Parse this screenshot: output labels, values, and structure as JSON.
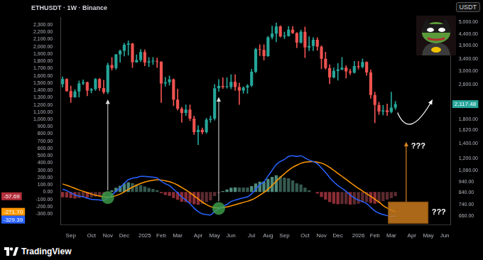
{
  "chart_data": {
    "type": "candlestick",
    "title": "ETHUSDT · 1W · Binance",
    "currency_button": "USDT",
    "brand": "TradingView",
    "grid": false,
    "log": "y",
    "categories": [
      null,
      null,
      "Sep",
      null,
      null,
      null,
      null,
      "Oct",
      null,
      null,
      null,
      "Nov",
      null,
      null,
      null,
      "Dec",
      null,
      null,
      null,
      null,
      "2025",
      null,
      null,
      null,
      "Feb",
      null,
      null,
      null,
      "Mar",
      null,
      null,
      null,
      null,
      "Apr",
      null,
      null,
      null,
      "May",
      null,
      null,
      null,
      "Jun",
      null,
      null,
      null,
      null,
      "Jul",
      null,
      null,
      null,
      "Aug",
      null,
      null,
      null,
      "Sep",
      null,
      null,
      null,
      null,
      "Oct",
      null,
      null,
      null,
      "Nov",
      null,
      null,
      null,
      "Dec",
      null,
      null,
      null,
      null,
      "2026",
      null,
      null,
      null,
      "Feb",
      null,
      null,
      null,
      "Mar",
      null,
      null,
      null,
      null,
      "Apr",
      null,
      null,
      null,
      "May",
      null,
      null,
      null,
      "Jun",
      null
    ],
    "ylim": [
      600,
      5230
    ],
    "yticks": [
      {
        "value": 5000,
        "label": "5,000.00"
      },
      {
        "value": 4400,
        "label": "4,400.00"
      },
      {
        "value": 3900,
        "label": "3,900.00"
      },
      {
        "value": 3400,
        "label": "3,400.00"
      },
      {
        "value": 3000,
        "label": "3,000.00"
      },
      {
        "value": 2600,
        "label": "2,600.00"
      },
      {
        "value": 1800,
        "label": "1,800.00"
      },
      {
        "value": 1620,
        "label": "1,620.00"
      },
      {
        "value": 1400,
        "label": "1,400.00"
      },
      {
        "value": 1200,
        "label": "1,200.00"
      },
      {
        "value": 1060,
        "label": "1,060.00"
      },
      {
        "value": 940,
        "label": "940.00"
      },
      {
        "value": 840,
        "label": "840.00"
      },
      {
        "value": 740,
        "label": "740.00"
      },
      {
        "value": 660,
        "label": "660.00"
      }
    ],
    "y2lim": [
      -450,
      2400
    ],
    "y2ticks": [
      {
        "value": 2300,
        "label": "2,300.00"
      },
      {
        "value": 2200,
        "label": "2,200.00"
      },
      {
        "value": 2100,
        "label": "2,100.00"
      },
      {
        "value": 2000,
        "label": "2,000.00"
      },
      {
        "value": 1900,
        "label": "1,900.00"
      },
      {
        "value": 1800,
        "label": "1,800.00"
      },
      {
        "value": 1700,
        "label": "1,700.00"
      },
      {
        "value": 1600,
        "label": "1,600.00"
      },
      {
        "value": 1500,
        "label": "1,500.00"
      },
      {
        "value": 1400,
        "label": "1,400.00"
      },
      {
        "value": 1300,
        "label": "1,300.00"
      },
      {
        "value": 1200,
        "label": "1,200.00"
      },
      {
        "value": 1100,
        "label": "1,100.00"
      },
      {
        "value": 1000,
        "label": "1,000.00"
      },
      {
        "value": 900,
        "label": "900.00"
      },
      {
        "value": 800,
        "label": "800.00"
      },
      {
        "value": 700,
        "label": "700.00"
      },
      {
        "value": 600,
        "label": "600.00"
      },
      {
        "value": 500,
        "label": "500.00"
      },
      {
        "value": 400,
        "label": "400.00"
      },
      {
        "value": 300,
        "label": "300.00"
      },
      {
        "value": 200,
        "label": "200.00"
      },
      {
        "value": 100,
        "label": "100.00"
      },
      {
        "value": 0,
        "label": "0.00"
      },
      {
        "value": -100,
        "label": "-100.00"
      },
      {
        "value": -200,
        "label": "-200.00"
      },
      {
        "value": -300,
        "label": "-300.00"
      }
    ],
    "series": [
      {
        "type": "candlestick",
        "open": [
          2610,
          2750,
          2425,
          2275,
          2415,
          2630,
          2660,
          2440,
          2475,
          2750,
          2505,
          2400,
          3190,
          3090,
          3560,
          3700,
          3940,
          3990,
          3280,
          3360,
          3650,
          3270,
          3310,
          3320,
          3300,
          2630,
          2660,
          2740,
          2220,
          2020,
          1930,
          2000,
          1820,
          1580,
          1620,
          1580,
          1800,
          1820,
          2500,
          2560,
          2530,
          2530,
          2670,
          2530,
          2440,
          2520,
          2570,
          2970,
          3760,
          3730,
          3500,
          4260,
          4430,
          4770,
          4300,
          4310,
          4610,
          4450,
          4030,
          4510,
          3830,
          3890,
          4150,
          3860,
          3400,
          3090,
          2800,
          3000,
          3040,
          3100,
          2980,
          2940,
          3150,
          3120,
          3290,
          2950,
          2330,
          2100,
          1960,
          1980,
          1950,
          2040,
          null,
          null,
          null,
          null,
          null,
          null,
          null,
          null,
          null,
          null,
          null,
          null,
          null
        ],
        "high": [
          2820,
          2765,
          2560,
          2465,
          2700,
          2730,
          2670,
          2500,
          2770,
          2770,
          2720,
          3250,
          3450,
          3560,
          3730,
          4000,
          4110,
          4000,
          3550,
          3750,
          3740,
          3450,
          3450,
          3430,
          3300,
          2800,
          2845,
          2760,
          2480,
          2050,
          2100,
          2100,
          1870,
          1690,
          1650,
          1830,
          1870,
          2600,
          2740,
          2790,
          2790,
          2880,
          2880,
          2640,
          2540,
          2600,
          3050,
          3800,
          3940,
          3940,
          4300,
          4790,
          4950,
          4810,
          4500,
          4770,
          4770,
          4470,
          4590,
          4750,
          4290,
          4250,
          4250,
          3900,
          3650,
          3200,
          3090,
          3240,
          3450,
          3170,
          3050,
          3310,
          3310,
          3400,
          3300,
          3030,
          2400,
          2160,
          2090,
          2120,
          2400,
          2180,
          null,
          null,
          null,
          null,
          null,
          null,
          null,
          null,
          null,
          null,
          null,
          null,
          null
        ],
        "low": [
          2530,
          2420,
          2150,
          2270,
          2280,
          2590,
          2310,
          2380,
          2440,
          2440,
          2360,
          2360,
          3020,
          3040,
          3280,
          3500,
          3530,
          3100,
          3280,
          3300,
          3160,
          3130,
          3200,
          3100,
          2150,
          2550,
          2580,
          2080,
          1990,
          1750,
          1880,
          1780,
          1540,
          1385,
          1550,
          1560,
          1750,
          1790,
          2420,
          2490,
          2500,
          2480,
          2440,
          2110,
          2370,
          2370,
          2540,
          2940,
          3510,
          3350,
          3480,
          4180,
          4060,
          4260,
          4200,
          4300,
          4420,
          3820,
          4000,
          3440,
          3700,
          3700,
          3710,
          3060,
          3050,
          2620,
          2780,
          2720,
          3020,
          2780,
          2880,
          2920,
          3050,
          3090,
          2860,
          2250,
          1740,
          1900,
          1890,
          1880,
          1930,
          2000,
          null,
          null,
          null,
          null,
          null,
          null,
          null,
          null,
          null,
          null,
          null,
          null,
          null
        ],
        "close": [
          2750,
          2425,
          2275,
          2415,
          2630,
          2660,
          2440,
          2475,
          2750,
          2505,
          2400,
          3190,
          3090,
          3560,
          3700,
          3940,
          3990,
          3280,
          3360,
          3650,
          3270,
          3310,
          3320,
          3300,
          2630,
          2660,
          2740,
          2220,
          2020,
          1930,
          2000,
          1820,
          1580,
          1620,
          1580,
          1800,
          1820,
          2500,
          2560,
          2530,
          2530,
          2670,
          2530,
          2440,
          2520,
          2570,
          2970,
          3760,
          3730,
          3500,
          4260,
          4430,
          4770,
          4300,
          4310,
          4610,
          4450,
          4030,
          4510,
          3830,
          3890,
          4150,
          3860,
          3400,
          3090,
          2800,
          3000,
          3040,
          3100,
          2980,
          2940,
          3150,
          3120,
          3290,
          2950,
          2330,
          2100,
          1960,
          1980,
          1950,
          2040,
          2117.48,
          null,
          null,
          null,
          null,
          null,
          null,
          null,
          null,
          null,
          null,
          null,
          null,
          null
        ],
        "colors": [
          "#26a69a",
          "#ef5350",
          "#ef5350",
          "#26a69a",
          "#26a69a",
          "#26a69a",
          "#ef5350",
          "#26a69a",
          "#26a69a",
          "#ef5350",
          "#ef5350",
          "#26a69a",
          "#ef5350",
          "#26a69a",
          "#26a69a",
          "#26a69a",
          "#26a69a",
          "#ef5350",
          "#26a69a",
          "#26a69a",
          "#ef5350",
          "#26a69a",
          "#26a69a",
          "#ef5350",
          "#ef5350",
          "#26a69a",
          "#26a69a",
          "#ef5350",
          "#ef5350",
          "#ef5350",
          "#26a69a",
          "#ef5350",
          "#ef5350",
          "#26a69a",
          "#ef5350",
          "#26a69a",
          "#26a69a",
          "#26a69a",
          "#26a69a",
          "#ef5350",
          "#26a69a",
          "#26a69a",
          "#ef5350",
          "#ef5350",
          "#26a69a",
          "#26a69a",
          "#26a69a",
          "#26a69a",
          "#ef5350",
          "#ef5350",
          "#26a69a",
          "#26a69a",
          "#26a69a",
          "#ef5350",
          "#26a69a",
          "#26a69a",
          "#ef5350",
          "#ef5350",
          "#26a69a",
          "#ef5350",
          "#26a69a",
          "#26a69a",
          "#ef5350",
          "#ef5350",
          "#ef5350",
          "#ef5350",
          "#26a69a",
          "#26a69a",
          "#26a69a",
          "#ef5350",
          "#ef5350",
          "#26a69a",
          "#ef5350",
          "#26a69a",
          "#ef5350",
          "#ef5350",
          "#ef5350",
          "#ef5350",
          "#26a69a",
          "#ef5350",
          "#26a69a",
          "#26a69a",
          null,
          null,
          null,
          null,
          null,
          null,
          null,
          null,
          null,
          null,
          null,
          null,
          null
        ]
      },
      {
        "type": "bar",
        "axis": "y2",
        "values": [
          -72,
          -74,
          -83,
          -90,
          -84,
          -75,
          -76,
          -73,
          -62,
          -54,
          -47,
          -10,
          24,
          59,
          87,
          118,
          134,
          123,
          106,
          97,
          78,
          58,
          42,
          26,
          -15,
          -40,
          -52,
          -82,
          -106,
          -133,
          -138,
          -150,
          -168,
          -174,
          -163,
          -138,
          -114,
          -55,
          -12,
          14,
          35,
          60,
          64,
          63,
          62,
          62,
          82,
          118,
          142,
          146,
          181,
          209,
          231,
          217,
          198,
          190,
          160,
          120,
          104,
          59,
          23,
          2,
          -22,
          -68,
          -103,
          -139,
          -159,
          -167,
          -166,
          -165,
          -172,
          -170,
          -160,
          -144,
          -139,
          -151,
          -161,
          -153,
          -125,
          -105,
          -85,
          -57.69,
          null,
          null,
          null,
          null,
          null,
          null,
          null,
          null,
          null,
          null,
          null,
          null,
          null
        ],
        "colors": [
          "#8c2d36",
          "#8c2d36",
          "#8c2d36",
          "#8c2d36",
          "#5b2a2f",
          "#5b2a2f",
          "#8c2d36",
          "#5b2a2f",
          "#5b2a2f",
          "#5b2a2f",
          "#5b2a2f",
          "#5b2a2f",
          "#4f8a7c",
          "#4f8a7c",
          "#4f8a7c",
          "#4f8a7c",
          "#4f8a7c",
          "#35594f",
          "#35594f",
          "#35594f",
          "#35594f",
          "#35594f",
          "#35594f",
          "#35594f",
          "#8c2d36",
          "#8c2d36",
          "#8c2d36",
          "#8c2d36",
          "#8c2d36",
          "#8c2d36",
          "#8c2d36",
          "#8c2d36",
          "#8c2d36",
          "#8c2d36",
          "#5b2a2f",
          "#5b2a2f",
          "#5b2a2f",
          "#5b2a2f",
          "#5b2a2f",
          "#4f8a7c",
          "#4f8a7c",
          "#4f8a7c",
          "#4f8a7c",
          "#35594f",
          "#35594f",
          "#35594f",
          "#4f8a7c",
          "#4f8a7c",
          "#4f8a7c",
          "#4f8a7c",
          "#4f8a7c",
          "#4f8a7c",
          "#4f8a7c",
          "#35594f",
          "#35594f",
          "#35594f",
          "#35594f",
          "#35594f",
          "#35594f",
          "#35594f",
          "#35594f",
          "#35594f",
          "#8c2d36",
          "#8c2d36",
          "#8c2d36",
          "#8c2d36",
          "#8c2d36",
          "#8c2d36",
          "#5b2a2f",
          "#5b2a2f",
          "#8c2d36",
          "#5b2a2f",
          "#5b2a2f",
          "#5b2a2f",
          "#5b2a2f",
          "#8c2d36",
          "#8c2d36",
          "#5b2a2f",
          "#5b2a2f",
          "#5b2a2f",
          "#5b2a2f",
          "#5b2a2f",
          null,
          null,
          null,
          null,
          null,
          null,
          null,
          null,
          null,
          null,
          null,
          null,
          null
        ]
      },
      {
        "type": "line",
        "axis": "y2",
        "color": "#2962ff",
        "values": [
          40,
          20,
          -10,
          -40,
          -55,
          -65,
          -85,
          -100,
          -105,
          -110,
          -115,
          -80,
          -40,
          10,
          60,
          120,
          170,
          190,
          200,
          215,
          215,
          210,
          205,
          195,
          150,
          115,
          90,
          40,
          -10,
          -70,
          -110,
          -160,
          -220,
          -270,
          -300,
          -310,
          -315,
          -270,
          -230,
          -200,
          -170,
          -130,
          -110,
          -95,
          -80,
          -65,
          -25,
          40,
          100,
          140,
          220,
          300,
          380,
          420,
          450,
          490,
          500,
          490,
          500,
          470,
          440,
          420,
          390,
          330,
          270,
          200,
          140,
          90,
          50,
          10,
          -40,
          -80,
          -110,
          -130,
          -160,
          -210,
          -260,
          -290,
          -310,
          -325,
          -335,
          -329.39,
          null,
          null,
          null,
          null,
          null,
          null,
          null,
          null,
          null,
          null,
          null,
          null,
          null
        ]
      },
      {
        "type": "line",
        "axis": "y2",
        "color": "#ff9800",
        "values": [
          112,
          94,
          73,
          50,
          29,
          10,
          -9,
          -27,
          -43,
          -56,
          -68,
          -70,
          -64,
          -49,
          -27,
          2,
          36,
          67,
          94,
          118,
          137,
          152,
          163,
          169,
          165,
          155,
          142,
          122,
          96,
          63,
          28,
          -10,
          -52,
          -96,
          -137,
          -172,
          -201,
          -215,
          -218,
          -214,
          -205,
          -190,
          -174,
          -158,
          -142,
          -127,
          -107,
          -78,
          -42,
          -6,
          39,
          91,
          149,
          203,
          252,
          300,
          340,
          370,
          396,
          411,
          417,
          418,
          412,
          398,
          373,
          339,
          299,
          257,
          216,
          175,
          132,
          90,
          50,
          14,
          -21,
          -59,
          -99,
          -137,
          -185,
          -220,
          -250,
          -271.7,
          null,
          null,
          null,
          null,
          null,
          null,
          null,
          null,
          null,
          null,
          null,
          null,
          null
        ]
      }
    ],
    "last_value_labels": [
      {
        "axis": "y",
        "value": 2117.48,
        "label": "2,117.48",
        "color": "#26a69a"
      },
      {
        "axis": "y2",
        "value": -57.69,
        "label": "-57.69",
        "color": "#b2303c"
      },
      {
        "axis": "y2",
        "value": -271.7,
        "label": "-271.70",
        "color": "#ff9800"
      },
      {
        "axis": "y2",
        "value": -329.39,
        "label": "-329.39",
        "color": "#2962ff"
      }
    ],
    "markers": [
      {
        "index": 11,
        "value": -75,
        "color": "#3fa34d"
      },
      {
        "index": 38,
        "value": -225,
        "color": "#3fa34d"
      }
    ],
    "annotations": [
      {
        "text": "???"
      },
      {
        "text": "???"
      }
    ]
  }
}
